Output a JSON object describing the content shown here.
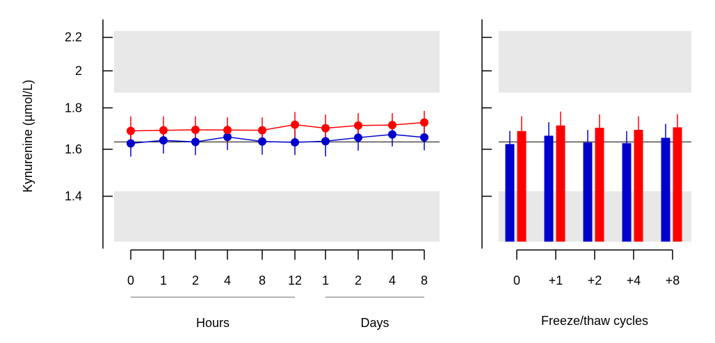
{
  "figure": {
    "ylabel": "Kynurenine (µmol/L)"
  },
  "colors": {
    "series_blue": "#0000cc",
    "series_red": "#ff0000",
    "band": "#e8e8e8",
    "reference_line": "#000000"
  },
  "chart_data": [
    {
      "type": "line",
      "panel": "left",
      "ylabel": "Kynurenine (µmol/L)",
      "y_scale": "log",
      "ylim": [
        1.2,
        2.27
      ],
      "yticks": [
        1.4,
        1.6,
        1.8,
        2,
        2.2
      ],
      "ytick_labels": [
        "1.4",
        "1.6",
        "1.8",
        "2",
        "2.2"
      ],
      "categories": [
        "0",
        "1",
        "2",
        "4",
        "8",
        "12",
        "1",
        "2",
        "4",
        "8"
      ],
      "groups": [
        {
          "label": "Hours",
          "from": 0,
          "to": 5
        },
        {
          "label": "Days",
          "from": 6,
          "to": 9
        }
      ],
      "reference_line": 1.634,
      "bands": [
        {
          "from": 1.88,
          "to": 2.24
        },
        {
          "from": 1.2,
          "to": 1.42
        }
      ],
      "series": [
        {
          "color": "#0000cc",
          "values": [
            1.627,
            1.641,
            1.634,
            1.657,
            1.636,
            1.632,
            1.637,
            1.654,
            1.669,
            1.655
          ],
          "err_low": [
            1.567,
            1.581,
            1.574,
            1.597,
            1.576,
            1.574,
            1.568,
            1.594,
            1.613,
            1.595
          ],
          "err_high": [
            1.686,
            1.701,
            1.695,
            1.716,
            1.696,
            1.693,
            1.697,
            1.714,
            1.724,
            1.714
          ]
        },
        {
          "color": "#ff0000",
          "values": [
            1.686,
            1.689,
            1.691,
            1.69,
            1.689,
            1.716,
            1.699,
            1.712,
            1.714,
            1.727
          ],
          "err_low": [
            1.627,
            1.628,
            1.632,
            1.631,
            1.63,
            1.657,
            1.64,
            1.653,
            1.657,
            1.674
          ],
          "err_high": [
            1.757,
            1.757,
            1.757,
            1.752,
            1.752,
            1.779,
            1.766,
            1.773,
            1.773,
            1.785
          ]
        }
      ]
    },
    {
      "type": "bar",
      "panel": "right",
      "xlabel": "Freeze/thaw cycles",
      "y_scale": "log",
      "ylim": [
        1.2,
        2.27
      ],
      "yticks": [
        1.4,
        1.6,
        1.8,
        2,
        2.2
      ],
      "categories": [
        "0",
        "+1",
        "+2",
        "+4",
        "+8"
      ],
      "reference_line": 1.634,
      "bands": [
        {
          "from": 1.88,
          "to": 2.24
        },
        {
          "from": 1.2,
          "to": 1.42
        }
      ],
      "series": [
        {
          "color": "#0000cc",
          "values": [
            1.624,
            1.663,
            1.631,
            1.628,
            1.653
          ],
          "err_high": [
            1.686,
            1.728,
            1.69,
            1.685,
            1.72
          ]
        },
        {
          "color": "#ff0000",
          "values": [
            1.685,
            1.712,
            1.701,
            1.691,
            1.703
          ],
          "err_high": [
            1.757,
            1.781,
            1.767,
            1.757,
            1.768
          ]
        }
      ]
    }
  ]
}
